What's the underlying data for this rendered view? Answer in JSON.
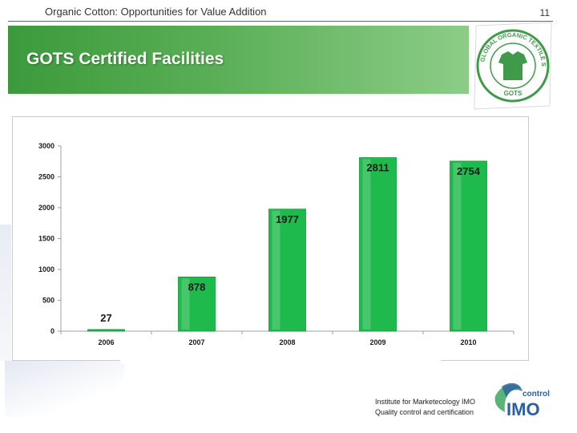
{
  "header": {
    "subtitle": "Organic Cotton: Opportunities for Value Addition",
    "page_number": "11"
  },
  "banner": {
    "title": "GOTS Certified Facilities"
  },
  "gots_logo": {
    "icon": "gots-seal-icon",
    "text": "GLOBAL ORGANIC TEXTILE STANDARD",
    "short": "GOTS"
  },
  "chart_data": {
    "type": "bar",
    "categories": [
      "2006",
      "2007",
      "2008",
      "2009",
      "2010"
    ],
    "values": [
      27,
      878,
      1977,
      2811,
      2754
    ],
    "data_labels": [
      "27",
      "878",
      "1977",
      "2811",
      "2754"
    ],
    "y_ticks": [
      "0",
      "500",
      "1000",
      "1500",
      "2000",
      "2500",
      "3000"
    ],
    "ylim": [
      0,
      3000
    ],
    "title": "",
    "xlabel": "",
    "ylabel": "",
    "grid": false,
    "legend": "none",
    "bar_color": "#1fba4c"
  },
  "footer": {
    "line1": "Institute for Marketecology IMO",
    "line2": "Quality control and certification",
    "imo_brand": "IMO",
    "imo_control": "control"
  },
  "colors": {
    "banner_green": "#4ea84c",
    "bar_green": "#1fba4c",
    "imo_blue": "#2c5fa0",
    "imo_green": "#3aa860"
  }
}
